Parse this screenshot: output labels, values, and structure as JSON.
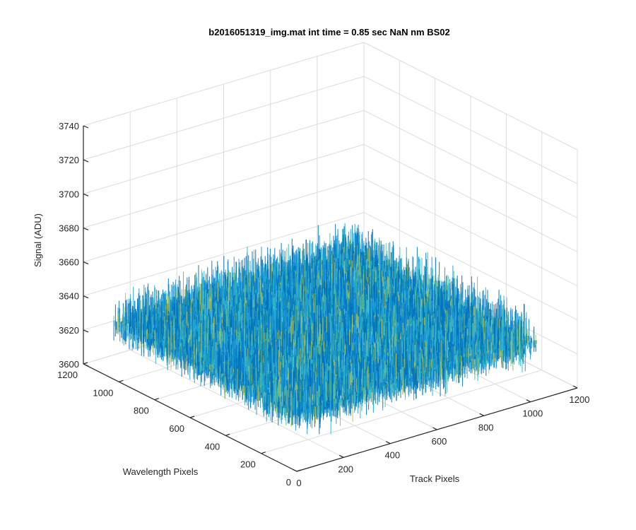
{
  "chart_data": {
    "type": "surface",
    "title": "b2016051319_img.mat int time = 0.85 sec  NaN nm BS02",
    "xlabel": "Track Pixels",
    "ylabel": "Wavelength Pixels",
    "zlabel": "Signal (ADU)",
    "x_ticks": [
      "0",
      "200",
      "400",
      "600",
      "800",
      "1000",
      "1200"
    ],
    "y_ticks": [
      "0",
      "200",
      "400",
      "600",
      "800",
      "1000",
      "1200"
    ],
    "z_ticks": [
      "3600",
      "3620",
      "3640",
      "3660",
      "3680",
      "3700",
      "3720",
      "3740"
    ],
    "xlim": [
      0,
      1200
    ],
    "ylim": [
      0,
      1200
    ],
    "zlim": [
      3600,
      3740
    ],
    "data_extent": {
      "x": [
        0,
        1024
      ],
      "y": [
        0,
        1024
      ]
    },
    "signal_mean": 3635,
    "signal_noise_range": [
      3610,
      3700
    ],
    "grid": true,
    "colormap": [
      "#0072BD",
      "#1C9CD8",
      "#2DB7C8",
      "#64C29A",
      "#B7C24F"
    ]
  }
}
